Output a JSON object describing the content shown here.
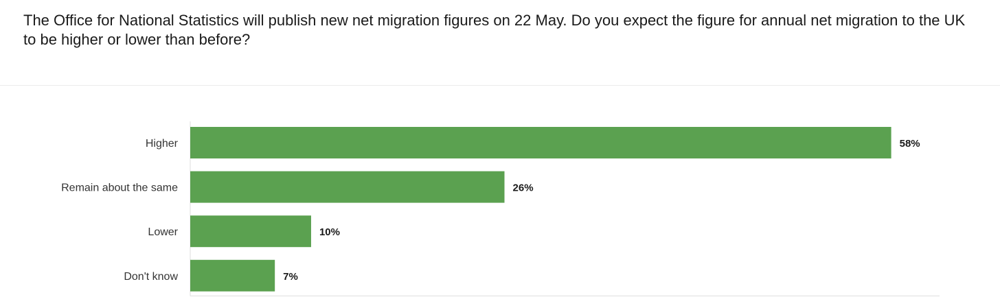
{
  "question": "The Office for National Statistics will publish new net migration figures on 22 May. Do you expect the figure for annual net migration to the UK to be higher or lower than before?",
  "colors": {
    "bar": "#5ba150",
    "axis": "#dddddd"
  },
  "chart_data": {
    "type": "bar",
    "orientation": "horizontal",
    "categories": [
      "Higher",
      "Remain about the same",
      "Lower",
      "Don't know"
    ],
    "values": [
      58,
      26,
      10,
      7
    ],
    "value_labels": [
      "58%",
      "26%",
      "10%",
      "7%"
    ],
    "unit": "%",
    "xlim": [
      0,
      62
    ],
    "grid": false,
    "legend": "none"
  }
}
